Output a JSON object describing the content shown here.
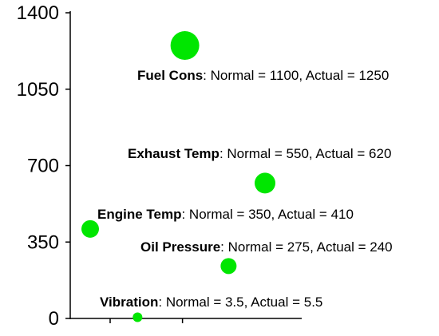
{
  "chart_data": {
    "type": "scatter",
    "title": "",
    "xlabel": "",
    "ylabel": "",
    "ylim": [
      0,
      1400
    ],
    "y_ticks": [
      0,
      350,
      700,
      1050,
      1400
    ],
    "y_tick_labels": [
      "0",
      "350",
      "700",
      "1050",
      "1400"
    ],
    "grid": false,
    "legend": "none",
    "point_color": "#00e600",
    "points": [
      {
        "name": "Fuel Cons",
        "rest": ": Normal = 1100, Actual = 1250",
        "normal": 1100,
        "actual": 1250,
        "x": 3.1,
        "y": 1250,
        "size": 1.8
      },
      {
        "name": "Exhaust Temp",
        "rest": ": Normal = 550, Actual = 620",
        "normal": 550,
        "actual": 620,
        "x": 5.3,
        "y": 620,
        "size": 1.3
      },
      {
        "name": "Engine Temp",
        "rest": ": Normal = 350, Actual = 410",
        "normal": 350,
        "actual": 410,
        "x": 0.5,
        "y": 410,
        "size": 1.1
      },
      {
        "name": "Oil Pressure",
        "rest": ": Normal = 275, Actual = 240",
        "normal": 275,
        "actual": 240,
        "x": 4.3,
        "y": 240,
        "size": 1.0
      },
      {
        "name": "Vibration",
        "rest": ": Normal = 3.5, Actual = 5.5",
        "normal": 3.5,
        "actual": 5.5,
        "x": 1.8,
        "y": 5.5,
        "size": 0.6
      }
    ]
  }
}
